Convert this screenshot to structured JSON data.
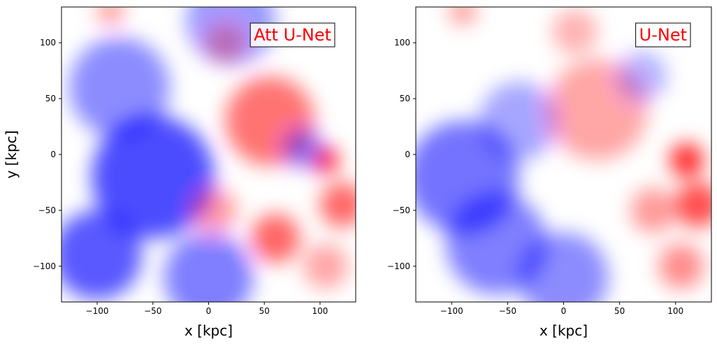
{
  "chart_data": [
    {
      "type": "heatmap",
      "title": "Att U-Net",
      "xlabel": "x [kpc]",
      "ylabel": "y [kpc]",
      "xlim": [
        -132,
        132
      ],
      "ylim": [
        -132,
        132
      ],
      "xticks": [
        -100,
        -50,
        0,
        50,
        100
      ],
      "yticks": [
        -100,
        -50,
        0,
        50,
        100
      ],
      "grid": false,
      "colormap": "bwr",
      "colors": {
        "negative": "#0000ff",
        "zero": "#ffffff",
        "positive": "#ff0000",
        "label": "#ff0000"
      },
      "regions": [
        {
          "x": -50,
          "y": -20,
          "r": 55,
          "value": -0.7
        },
        {
          "x": -100,
          "y": -90,
          "r": 40,
          "value": -0.65
        },
        {
          "x": -80,
          "y": 60,
          "r": 45,
          "value": -0.45
        },
        {
          "x": 20,
          "y": 120,
          "r": 40,
          "value": -0.4
        },
        {
          "x": 0,
          "y": -110,
          "r": 40,
          "value": -0.5
        },
        {
          "x": 55,
          "y": 30,
          "r": 40,
          "value": 0.55
        },
        {
          "x": 105,
          "y": -5,
          "r": 12,
          "value": 0.85
        },
        {
          "x": 120,
          "y": -45,
          "r": 20,
          "value": 0.6
        },
        {
          "x": 60,
          "y": -75,
          "r": 22,
          "value": 0.6
        },
        {
          "x": 5,
          "y": -50,
          "r": 20,
          "value": 0.4
        },
        {
          "x": 85,
          "y": 5,
          "r": 18,
          "value": -0.45
        },
        {
          "x": -88,
          "y": 128,
          "r": 12,
          "value": 0.4
        },
        {
          "x": 15,
          "y": 100,
          "r": 18,
          "value": 0.3
        },
        {
          "x": 105,
          "y": -100,
          "r": 20,
          "value": 0.35
        }
      ]
    },
    {
      "type": "heatmap",
      "title": "U-Net",
      "xlabel": "x [kpc]",
      "ylabel": "",
      "xlim": [
        -132,
        132
      ],
      "ylim": [
        -132,
        132
      ],
      "xticks": [
        -100,
        -50,
        0,
        50,
        100
      ],
      "yticks": [
        -100,
        -50,
        0,
        50,
        100
      ],
      "grid": false,
      "colormap": "bwr",
      "colors": {
        "negative": "#0000ff",
        "zero": "#ffffff",
        "positive": "#ff0000",
        "label": "#ff0000"
      },
      "regions": [
        {
          "x": -90,
          "y": -20,
          "r": 50,
          "value": -0.55
        },
        {
          "x": -60,
          "y": -80,
          "r": 45,
          "value": -0.5
        },
        {
          "x": -40,
          "y": 30,
          "r": 35,
          "value": -0.35
        },
        {
          "x": 0,
          "y": -110,
          "r": 40,
          "value": -0.45
        },
        {
          "x": 30,
          "y": 40,
          "r": 45,
          "value": 0.35
        },
        {
          "x": 110,
          "y": -5,
          "r": 15,
          "value": 0.85
        },
        {
          "x": 120,
          "y": -45,
          "r": 20,
          "value": 0.7
        },
        {
          "x": 80,
          "y": -50,
          "r": 20,
          "value": 0.4
        },
        {
          "x": 105,
          "y": -100,
          "r": 20,
          "value": 0.45
        },
        {
          "x": -90,
          "y": 128,
          "r": 12,
          "value": 0.4
        },
        {
          "x": 10,
          "y": 110,
          "r": 20,
          "value": 0.3
        },
        {
          "x": 70,
          "y": 70,
          "r": 22,
          "value": -0.3
        }
      ]
    }
  ]
}
